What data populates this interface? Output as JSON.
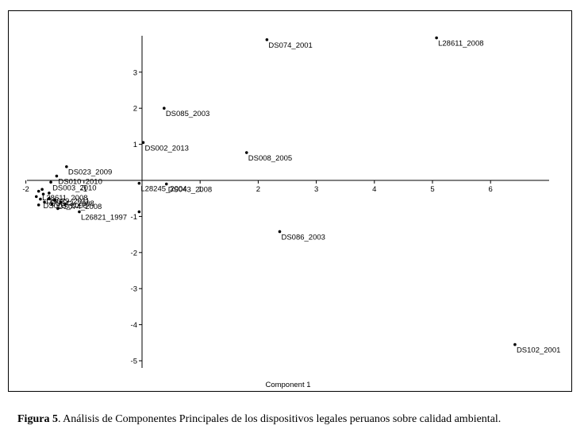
{
  "caption": {
    "figure_label": "Figura 5",
    "text": ". Análisis de Componentes Principales de los dispositivos legales peruanos sobre calidad ambiental."
  },
  "chart_data": {
    "type": "scatter",
    "title": "",
    "xlabel": "Component 1",
    "ylabel": "",
    "xlim": [
      -2,
      7
    ],
    "ylim": [
      -5.2,
      4.0
    ],
    "x_ticks": [
      -2,
      -1,
      1,
      2,
      3,
      4,
      5,
      6
    ],
    "y_ticks": [
      -5,
      -4,
      -3,
      -2,
      -1,
      1,
      2,
      3
    ],
    "grid": false,
    "colors": {
      "points": "#000000",
      "axes": "#000000"
    },
    "points": [
      {
        "label": "L28611_2008",
        "x": 5.07,
        "y": 3.95
      },
      {
        "label": "DS074_2001",
        "x": 2.15,
        "y": 3.9
      },
      {
        "label": "DS085_2003",
        "x": 0.38,
        "y": 2.0
      },
      {
        "label": "DS002_2013",
        "x": 0.02,
        "y": 1.05
      },
      {
        "label": "DS008_2005",
        "x": 1.8,
        "y": 0.77
      },
      {
        "label": "DS023_2009",
        "x": -1.3,
        "y": 0.38
      },
      {
        "label": "DS010_2010",
        "x": -1.47,
        "y": 0.12
      },
      {
        "label": "DS003_2010",
        "x": -1.57,
        "y": -0.05
      },
      {
        "label": "L28245_2004",
        "x": -0.05,
        "y": -0.08
      },
      {
        "label": "DS043_2008",
        "x": 0.42,
        "y": -0.1
      },
      {
        "label": "DS086_2003",
        "x": 2.37,
        "y": -1.42
      },
      {
        "label": "DS102_2001",
        "x": 6.42,
        "y": -4.55
      },
      {
        "label": "L26821_1997",
        "x": -1.08,
        "y": -0.87
      },
      {
        "label": "",
        "x": -0.05,
        "y": -0.87
      },
      {
        "label": "",
        "x": -1.45,
        "y": -0.78
      },
      {
        "label": "",
        "x": -1.32,
        "y": -0.66
      },
      {
        "label": "",
        "x": -1.72,
        "y": -0.25
      },
      {
        "label": "",
        "x": -1.78,
        "y": -0.3
      },
      {
        "label": "",
        "x": -1.7,
        "y": -0.38
      },
      {
        "label": "",
        "x": -1.6,
        "y": -0.35
      },
      {
        "label": "",
        "x": -1.82,
        "y": -0.45
      },
      {
        "label": "",
        "x": -1.75,
        "y": -0.52
      },
      {
        "label": "",
        "x": -1.68,
        "y": -0.6
      },
      {
        "label": "",
        "x": -1.6,
        "y": -0.5
      },
      {
        "label": "",
        "x": -1.5,
        "y": -0.55
      },
      {
        "label": "",
        "x": -1.55,
        "y": -0.65
      },
      {
        "label": "",
        "x": -1.4,
        "y": -0.6
      },
      {
        "label": "",
        "x": -1.78,
        "y": -0.68
      }
    ],
    "cluster_overlap_labels": [
      {
        "text": "L28611_2008",
        "x": -1.72,
        "y": -0.46
      },
      {
        "text": "DS029_2011",
        "x": -1.65,
        "y": -0.55
      },
      {
        "text": "DS043_2008",
        "x": -1.58,
        "y": -0.62
      },
      {
        "text": "DS003_2008",
        "x": -1.7,
        "y": -0.68
      },
      {
        "text": "DS074_2008",
        "x": -1.45,
        "y": -0.7
      }
    ]
  }
}
